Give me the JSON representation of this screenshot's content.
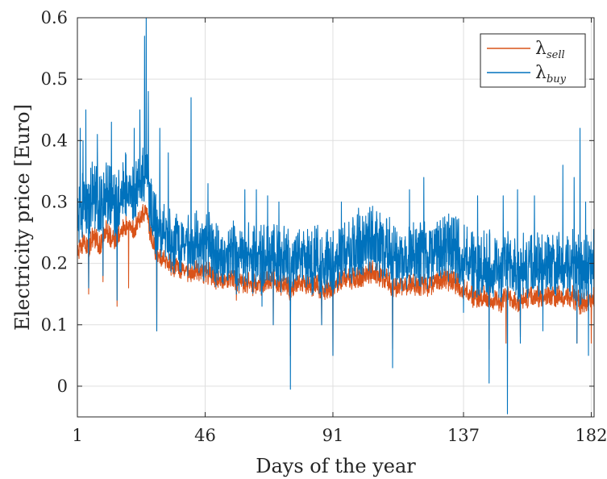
{
  "chart_data": {
    "type": "line",
    "xlabel": "Days of the year",
    "ylabel": "Electricity price [Euro]",
    "xlim": [
      1,
      183
    ],
    "ylim": [
      -0.05,
      0.6
    ],
    "xticks": [
      1,
      46,
      91,
      137,
      182
    ],
    "xtick_labels": [
      "1",
      "46",
      "91",
      "137",
      "182"
    ],
    "yticks": [
      0,
      0.1,
      0.2,
      0.3,
      0.4,
      0.5,
      0.6
    ],
    "ytick_labels": [
      "0",
      "0.1",
      "0.2",
      "0.3",
      "0.4",
      "0.5",
      "0.6"
    ],
    "grid": true,
    "legend_position": "top-right",
    "series": [
      {
        "name": "λsell",
        "legend_symbol": "λ",
        "legend_subscript": "sell",
        "color": "#D95319",
        "x": [
          1,
          3,
          5,
          7,
          9,
          11,
          13,
          15,
          17,
          19,
          21,
          23,
          25,
          26,
          27,
          29,
          31,
          35,
          40,
          46,
          50,
          55,
          60,
          65,
          70,
          72,
          74,
          76,
          78,
          80,
          84,
          88,
          90,
          91,
          95,
          100,
          105,
          110,
          112,
          115,
          120,
          125,
          130,
          135,
          137,
          140,
          145,
          150,
          152,
          155,
          160,
          165,
          170,
          175,
          178,
          180,
          182,
          183
        ],
        "values": [
          0.21,
          0.23,
          0.22,
          0.24,
          0.22,
          0.25,
          0.23,
          0.24,
          0.25,
          0.26,
          0.25,
          0.27,
          0.28,
          0.26,
          0.24,
          0.21,
          0.2,
          0.19,
          0.18,
          0.18,
          0.17,
          0.17,
          0.16,
          0.16,
          0.17,
          0.16,
          0.16,
          0.15,
          0.16,
          0.16,
          0.16,
          0.15,
          0.15,
          0.16,
          0.17,
          0.17,
          0.18,
          0.17,
          0.15,
          0.16,
          0.16,
          0.16,
          0.17,
          0.16,
          0.15,
          0.14,
          0.14,
          0.13,
          0.14,
          0.13,
          0.14,
          0.14,
          0.14,
          0.14,
          0.13,
          0.13,
          0.13,
          0.14
        ],
        "spikes": [
          {
            "x": 5,
            "y": 0.15
          },
          {
            "x": 10,
            "y": 0.17
          },
          {
            "x": 15,
            "y": 0.13
          },
          {
            "x": 19,
            "y": 0.16
          },
          {
            "x": 29,
            "y": 0.09
          },
          {
            "x": 57,
            "y": 0.14
          },
          {
            "x": 70,
            "y": 0.1
          },
          {
            "x": 76,
            "y": 0.05
          },
          {
            "x": 87,
            "y": 0.1
          },
          {
            "x": 91,
            "y": 0.05
          },
          {
            "x": 112,
            "y": 0.06
          },
          {
            "x": 146,
            "y": 0.06
          },
          {
            "x": 152,
            "y": 0.07
          },
          {
            "x": 157,
            "y": 0.08
          },
          {
            "x": 177,
            "y": 0.07
          },
          {
            "x": 182,
            "y": 0.07
          }
        ]
      },
      {
        "name": "λbuy",
        "legend_symbol": "λ",
        "legend_subscript": "buy",
        "color": "#0072BD",
        "x": [
          1,
          3,
          5,
          7,
          9,
          11,
          13,
          15,
          17,
          19,
          21,
          23,
          25,
          26,
          27,
          29,
          31,
          35,
          40,
          46,
          50,
          55,
          60,
          65,
          70,
          72,
          74,
          76,
          78,
          80,
          84,
          88,
          90,
          91,
          95,
          100,
          105,
          110,
          112,
          115,
          120,
          125,
          130,
          135,
          137,
          140,
          145,
          150,
          152,
          155,
          160,
          165,
          170,
          175,
          178,
          180,
          182,
          183
        ],
        "values": [
          0.25,
          0.28,
          0.27,
          0.3,
          0.27,
          0.3,
          0.28,
          0.28,
          0.3,
          0.31,
          0.3,
          0.32,
          0.33,
          0.3,
          0.28,
          0.24,
          0.23,
          0.22,
          0.21,
          0.21,
          0.2,
          0.2,
          0.19,
          0.19,
          0.2,
          0.19,
          0.19,
          0.18,
          0.19,
          0.19,
          0.19,
          0.18,
          0.18,
          0.19,
          0.2,
          0.21,
          0.22,
          0.21,
          0.19,
          0.19,
          0.2,
          0.2,
          0.21,
          0.2,
          0.19,
          0.18,
          0.18,
          0.17,
          0.18,
          0.17,
          0.18,
          0.18,
          0.18,
          0.18,
          0.17,
          0.17,
          0.17,
          0.19
        ],
        "spikes": [
          {
            "x": 2,
            "y": 0.42
          },
          {
            "x": 3,
            "y": 0.4
          },
          {
            "x": 4,
            "y": 0.45
          },
          {
            "x": 8,
            "y": 0.41
          },
          {
            "x": 10,
            "y": 0.4
          },
          {
            "x": 13,
            "y": 0.43
          },
          {
            "x": 18,
            "y": 0.38
          },
          {
            "x": 21,
            "y": 0.42
          },
          {
            "x": 23,
            "y": 0.45
          },
          {
            "x": 24.7,
            "y": 0.57
          },
          {
            "x": 25.2,
            "y": 0.6
          },
          {
            "x": 26,
            "y": 0.48
          },
          {
            "x": 30,
            "y": 0.42
          },
          {
            "x": 33,
            "y": 0.38
          },
          {
            "x": 41,
            "y": 0.47
          },
          {
            "x": 47,
            "y": 0.33
          },
          {
            "x": 60,
            "y": 0.32
          },
          {
            "x": 64,
            "y": 0.32
          },
          {
            "x": 68,
            "y": 0.31
          },
          {
            "x": 72,
            "y": 0.3
          },
          {
            "x": 94,
            "y": 0.3
          },
          {
            "x": 100,
            "y": 0.29
          },
          {
            "x": 118,
            "y": 0.32
          },
          {
            "x": 123,
            "y": 0.34
          },
          {
            "x": 142,
            "y": 0.31
          },
          {
            "x": 151,
            "y": 0.31
          },
          {
            "x": 156,
            "y": 0.32
          },
          {
            "x": 162,
            "y": 0.31
          },
          {
            "x": 172,
            "y": 0.36
          },
          {
            "x": 176,
            "y": 0.34
          },
          {
            "x": 178,
            "y": 0.42
          },
          {
            "x": 180,
            "y": 0.3
          },
          {
            "x": 5,
            "y": 0.16
          },
          {
            "x": 10,
            "y": 0.18
          },
          {
            "x": 15,
            "y": 0.14
          },
          {
            "x": 29,
            "y": 0.09
          },
          {
            "x": 57,
            "y": 0.15
          },
          {
            "x": 66,
            "y": 0.13
          },
          {
            "x": 70,
            "y": 0.1
          },
          {
            "x": 76,
            "y": -0.005
          },
          {
            "x": 87,
            "y": 0.1
          },
          {
            "x": 91,
            "y": 0.05
          },
          {
            "x": 112,
            "y": 0.03
          },
          {
            "x": 137,
            "y": 0.12
          },
          {
            "x": 146,
            "y": 0.005
          },
          {
            "x": 152.5,
            "y": -0.045
          },
          {
            "x": 157,
            "y": 0.07
          },
          {
            "x": 165,
            "y": 0.09
          },
          {
            "x": 177,
            "y": 0.07
          },
          {
            "x": 181,
            "y": 0.05
          }
        ]
      }
    ]
  }
}
